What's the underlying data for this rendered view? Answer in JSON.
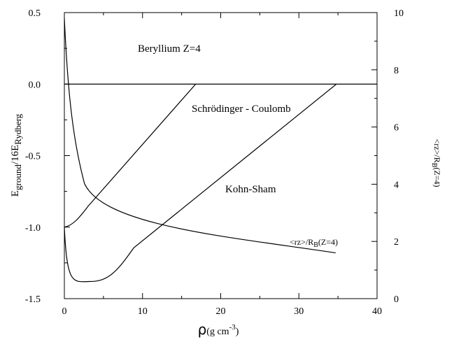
{
  "chart_data": {
    "type": "line",
    "annotations": {
      "system": "Beryllium Z=4",
      "schrodinger": "Schrödinger - Coulomb",
      "kohn_sham": "Kohn-Sham",
      "ratio": {
        "prefix": "<rz>/R",
        "sub": "B",
        "suffix": "(Z=4)"
      }
    },
    "x_axis": {
      "label_main": "ρ",
      "label_unit": "(g cm",
      "label_sup": "-3",
      "label_close": ")",
      "range": [
        0,
        40
      ],
      "ticks": [
        "0",
        "10",
        "20",
        "30",
        "40"
      ],
      "tick_values": [
        0,
        10,
        20,
        30,
        40
      ]
    },
    "y_axis_left": {
      "label_E": "E",
      "label_sub1": "ground",
      "label_mid": "/16E",
      "label_sub2": "Rydberg",
      "range": [
        -1.5,
        0.5
      ],
      "ticks": [
        "0.5",
        "0.0",
        "-0.5",
        "-1.0",
        "-1.5"
      ],
      "tick_values": [
        0.5,
        0.0,
        -0.5,
        -1.0,
        -1.5
      ]
    },
    "y_axis_right": {
      "label_prefix": "<rz>/R",
      "label_sub": "B",
      "label_suffix": "(Z=4)",
      "range": [
        0,
        10
      ],
      "ticks": [
        "10",
        "8",
        "6",
        "4",
        "2",
        "0"
      ],
      "tick_values": [
        10,
        8,
        6,
        4,
        2,
        0
      ]
    },
    "series": [
      {
        "axis": "left",
        "x": [
          0,
          16.8
        ],
        "y": [
          -1.0,
          0.0
        ]
      },
      {
        "axis": "left",
        "x": [
          0,
          3.5,
          34.8
        ],
        "y": [
          -1.0,
          -1.38,
          0.0
        ]
      },
      {
        "axis": "right",
        "x": [
          0,
          1.5,
          34.7
        ],
        "y": [
          9.8,
          5.0,
          1.6
        ]
      },
      {
        "axis": "left",
        "x": [
          0,
          40
        ],
        "y": [
          0.0,
          0.0
        ]
      }
    ]
  }
}
